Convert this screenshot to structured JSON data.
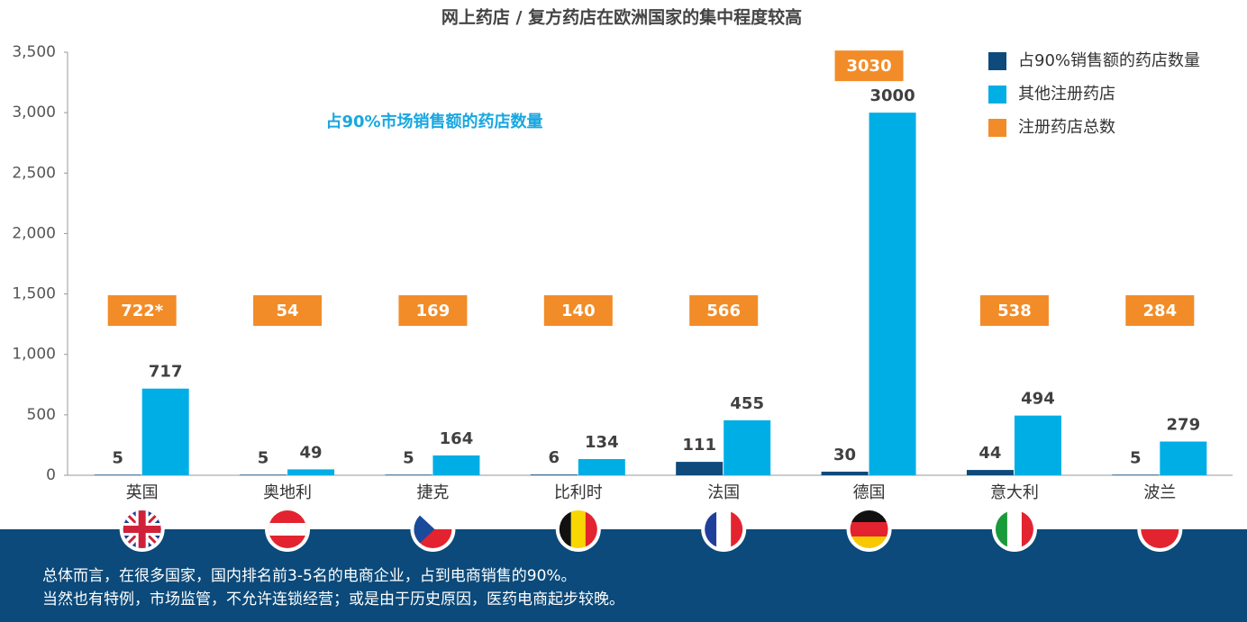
{
  "chart_data": {
    "type": "bar",
    "title": "网上药店 / 复方药店在欧洲国家的集中程度较高",
    "annotation": "占90%市场销售额的药店数量",
    "categories": [
      "英国",
      "奥地利",
      "捷克",
      "比利时",
      "法国",
      "德国",
      "意大利",
      "波兰"
    ],
    "series": [
      {
        "name": "占90%销售额的药店数量",
        "color": "#0e4a7b",
        "values": [
          5,
          5,
          5,
          6,
          111,
          30,
          44,
          5
        ]
      },
      {
        "name": "其他注册药店",
        "color": "#00aee6",
        "values": [
          717,
          49,
          164,
          134,
          455,
          3000,
          494,
          279
        ]
      },
      {
        "name": "注册药店总数",
        "color": "#f28c28",
        "values": [
          722,
          54,
          169,
          140,
          566,
          3030,
          538,
          284
        ],
        "value_labels": [
          "722*",
          "54",
          "169",
          "140",
          "566",
          "3030",
          "538",
          "284"
        ]
      }
    ],
    "ylim": [
      0,
      3500
    ],
    "yticks": [
      0,
      {
        "value": 500,
        "label": "500"
      },
      {
        "value": 1000,
        "label": "1,000"
      },
      {
        "value": 1500,
        "label": "1,500"
      },
      {
        "value": 2000,
        "label": "2,000"
      },
      {
        "value": 2500,
        "label": "2,500"
      },
      {
        "value": 3000,
        "label": "3,000"
      },
      {
        "value": 3500,
        "label": "3,500"
      }
    ],
    "footer": [
      "总体而言，在很多国家，国内排名前3-5名的电商企业，占到电商销售的90%。",
      "当然也有特例，市场监管，不允许连锁经营；或是由于历史原因，医药电商起步较晚。"
    ]
  }
}
